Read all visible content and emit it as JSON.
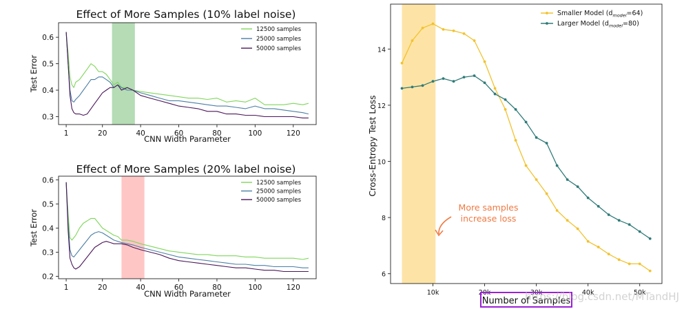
{
  "watermark": "https://blog.csdn.net/MTandHJ",
  "chart_data": [
    {
      "type": "line",
      "title": "Effect of More Samples (10% label noise)",
      "xlabel": "CNN Width Parameter",
      "ylabel": "Test Error",
      "xlim": [
        -3,
        132
      ],
      "ylim": [
        0.27,
        0.655
      ],
      "xticks": [
        1,
        20,
        40,
        60,
        80,
        100,
        120
      ],
      "yticks": [
        0.3,
        0.4,
        0.5,
        0.6
      ],
      "yticklabels": [
        "0.3",
        "0.4",
        "0.5",
        "0.6"
      ],
      "legend_position": "upper-right",
      "highlight": {
        "from": 25,
        "to": 37,
        "color": "#a8d6a8"
      },
      "series": [
        {
          "name": "12500 samples",
          "color": "#7fd65a",
          "x": [
            1,
            2,
            3,
            4,
            5,
            6,
            8,
            10,
            12,
            14,
            16,
            18,
            20,
            22,
            24,
            26,
            28,
            30,
            33,
            36,
            40,
            45,
            50,
            55,
            60,
            65,
            70,
            75,
            80,
            85,
            90,
            95,
            100,
            105,
            110,
            115,
            120,
            125,
            128
          ],
          "y": [
            0.62,
            0.54,
            0.45,
            0.42,
            0.41,
            0.43,
            0.44,
            0.46,
            0.48,
            0.5,
            0.49,
            0.47,
            0.47,
            0.46,
            0.44,
            0.42,
            0.43,
            0.41,
            0.41,
            0.4,
            0.395,
            0.39,
            0.385,
            0.38,
            0.375,
            0.37,
            0.37,
            0.365,
            0.37,
            0.355,
            0.36,
            0.355,
            0.37,
            0.345,
            0.345,
            0.345,
            0.35,
            0.345,
            0.35
          ]
        },
        {
          "name": "25000 samples",
          "color": "#4a7ea5",
          "x": [
            1,
            2,
            3,
            4,
            5,
            6,
            8,
            10,
            12,
            14,
            16,
            18,
            20,
            22,
            24,
            26,
            28,
            30,
            33,
            36,
            40,
            45,
            50,
            55,
            60,
            65,
            70,
            75,
            80,
            85,
            90,
            95,
            100,
            105,
            110,
            115,
            120,
            125,
            128
          ],
          "y": [
            0.62,
            0.5,
            0.4,
            0.36,
            0.355,
            0.365,
            0.38,
            0.4,
            0.42,
            0.44,
            0.44,
            0.45,
            0.45,
            0.44,
            0.43,
            0.41,
            0.42,
            0.41,
            0.4,
            0.4,
            0.39,
            0.38,
            0.37,
            0.36,
            0.36,
            0.355,
            0.35,
            0.345,
            0.34,
            0.34,
            0.335,
            0.33,
            0.34,
            0.33,
            0.33,
            0.325,
            0.32,
            0.315,
            0.31
          ]
        },
        {
          "name": "50000 samples",
          "color": "#4a1559",
          "x": [
            1,
            2,
            3,
            4,
            5,
            6,
            8,
            10,
            12,
            14,
            16,
            18,
            20,
            22,
            24,
            26,
            28,
            30,
            33,
            36,
            40,
            45,
            50,
            55,
            60,
            65,
            70,
            75,
            80,
            85,
            90,
            95,
            100,
            105,
            110,
            115,
            120,
            125,
            128
          ],
          "y": [
            0.62,
            0.5,
            0.38,
            0.33,
            0.315,
            0.31,
            0.31,
            0.305,
            0.31,
            0.33,
            0.35,
            0.37,
            0.39,
            0.4,
            0.41,
            0.41,
            0.42,
            0.4,
            0.41,
            0.4,
            0.38,
            0.37,
            0.36,
            0.35,
            0.34,
            0.335,
            0.33,
            0.32,
            0.32,
            0.31,
            0.31,
            0.305,
            0.305,
            0.3,
            0.3,
            0.3,
            0.3,
            0.295,
            0.295
          ]
        }
      ]
    },
    {
      "type": "line",
      "title": "Effect of More Samples (20% label noise)",
      "xlabel": "CNN Width Parameter",
      "ylabel": "Test Error",
      "xlim": [
        -3,
        132
      ],
      "ylim": [
        0.19,
        0.615
      ],
      "xticks": [
        1,
        20,
        40,
        60,
        80,
        100,
        120
      ],
      "yticks": [
        0.2,
        0.3,
        0.4,
        0.5,
        0.6
      ],
      "yticklabels": [
        "0.2",
        "0.3",
        "0.4",
        "0.5",
        "0.6"
      ],
      "legend_position": "upper-right",
      "highlight": {
        "from": 30,
        "to": 42,
        "color": "#ffbcbc"
      },
      "series": [
        {
          "name": "12500 samples",
          "color": "#7fd65a",
          "x": [
            1,
            2,
            3,
            4,
            5,
            6,
            8,
            10,
            12,
            14,
            16,
            18,
            20,
            22,
            24,
            26,
            28,
            30,
            33,
            36,
            40,
            45,
            50,
            55,
            60,
            65,
            70,
            75,
            80,
            85,
            90,
            95,
            100,
            105,
            110,
            115,
            120,
            125,
            128
          ],
          "y": [
            0.59,
            0.46,
            0.36,
            0.35,
            0.36,
            0.37,
            0.4,
            0.42,
            0.43,
            0.44,
            0.44,
            0.42,
            0.4,
            0.39,
            0.38,
            0.37,
            0.365,
            0.35,
            0.35,
            0.345,
            0.335,
            0.325,
            0.315,
            0.305,
            0.3,
            0.295,
            0.29,
            0.29,
            0.285,
            0.285,
            0.285,
            0.28,
            0.28,
            0.275,
            0.275,
            0.275,
            0.275,
            0.27,
            0.275
          ]
        },
        {
          "name": "25000 samples",
          "color": "#4a7ea5",
          "x": [
            1,
            2,
            3,
            4,
            5,
            6,
            8,
            10,
            12,
            14,
            16,
            18,
            20,
            22,
            24,
            26,
            28,
            30,
            33,
            36,
            40,
            45,
            50,
            55,
            60,
            65,
            70,
            75,
            80,
            85,
            90,
            95,
            100,
            105,
            110,
            115,
            120,
            125,
            128
          ],
          "y": [
            0.59,
            0.42,
            0.31,
            0.285,
            0.28,
            0.29,
            0.31,
            0.33,
            0.35,
            0.37,
            0.38,
            0.385,
            0.38,
            0.37,
            0.36,
            0.35,
            0.345,
            0.34,
            0.335,
            0.33,
            0.32,
            0.31,
            0.3,
            0.29,
            0.28,
            0.275,
            0.27,
            0.265,
            0.26,
            0.255,
            0.25,
            0.25,
            0.245,
            0.245,
            0.24,
            0.24,
            0.24,
            0.235,
            0.235
          ]
        },
        {
          "name": "50000 samples",
          "color": "#4a1559",
          "x": [
            1,
            2,
            3,
            4,
            5,
            6,
            8,
            10,
            12,
            14,
            16,
            18,
            20,
            22,
            24,
            26,
            28,
            30,
            33,
            36,
            40,
            45,
            50,
            55,
            60,
            65,
            70,
            75,
            80,
            85,
            90,
            95,
            100,
            105,
            110,
            115,
            120,
            125,
            128
          ],
          "y": [
            0.59,
            0.39,
            0.275,
            0.25,
            0.235,
            0.23,
            0.24,
            0.26,
            0.28,
            0.3,
            0.32,
            0.33,
            0.34,
            0.345,
            0.34,
            0.335,
            0.335,
            0.335,
            0.33,
            0.32,
            0.31,
            0.3,
            0.29,
            0.275,
            0.265,
            0.26,
            0.255,
            0.25,
            0.245,
            0.24,
            0.235,
            0.235,
            0.23,
            0.225,
            0.225,
            0.22,
            0.22,
            0.22,
            0.22
          ]
        }
      ]
    },
    {
      "type": "line",
      "title": "",
      "xlabel": "Number of Samples",
      "ylabel": "Cross-Entropy Test Loss",
      "xlim": [
        1800,
        54300
      ],
      "ylim": [
        5.65,
        15.6
      ],
      "xticks": [
        10000,
        20000,
        30000,
        40000,
        50000
      ],
      "xticklabels": [
        "10k",
        "20k",
        "30k",
        "40k",
        "50k"
      ],
      "yticks": [
        6,
        8,
        10,
        12,
        14
      ],
      "yticklabels": [
        "6",
        "8",
        "10",
        "12",
        "14"
      ],
      "legend_position": "upper-right",
      "highlight": {
        "from": 4000,
        "to": 10500,
        "color": "#fde3a1"
      },
      "annotation": {
        "lines": [
          "More samples",
          "increase loss"
        ],
        "color": "#f07a43"
      },
      "series": [
        {
          "name": "Smaller Model (d_model=64)",
          "legend_prefix": "Smaller Model (d",
          "legend_sub": "model",
          "legend_suffix": "=64)",
          "color": "#f2c22e",
          "x": [
            4000,
            6000,
            8000,
            10000,
            12000,
            14000,
            16000,
            18000,
            20000,
            22000,
            24000,
            26000,
            28000,
            30000,
            32000,
            34000,
            36000,
            38000,
            40000,
            42000,
            44000,
            46000,
            48000,
            50000,
            52000
          ],
          "y": [
            13.5,
            14.3,
            14.75,
            14.9,
            14.7,
            14.65,
            14.55,
            14.3,
            13.55,
            12.6,
            11.85,
            10.75,
            9.85,
            9.35,
            8.85,
            8.25,
            7.9,
            7.6,
            7.15,
            6.95,
            6.7,
            6.5,
            6.35,
            6.35,
            6.1
          ]
        },
        {
          "name": "Larger Model (d_model=80)",
          "legend_prefix": "Larger  Model (d",
          "legend_sub": "model",
          "legend_suffix": "=80)",
          "color": "#2f7b78",
          "x": [
            4000,
            6000,
            8000,
            10000,
            12000,
            14000,
            16000,
            18000,
            20000,
            22000,
            24000,
            26000,
            28000,
            30000,
            32000,
            34000,
            36000,
            38000,
            40000,
            42000,
            44000,
            46000,
            48000,
            50000,
            52000
          ],
          "y": [
            12.6,
            12.65,
            12.7,
            12.85,
            12.95,
            12.85,
            13.0,
            13.05,
            12.8,
            12.4,
            12.2,
            11.85,
            11.4,
            10.85,
            10.65,
            9.85,
            9.35,
            9.1,
            8.7,
            8.4,
            8.1,
            7.9,
            7.75,
            7.5,
            7.25
          ]
        }
      ]
    }
  ]
}
